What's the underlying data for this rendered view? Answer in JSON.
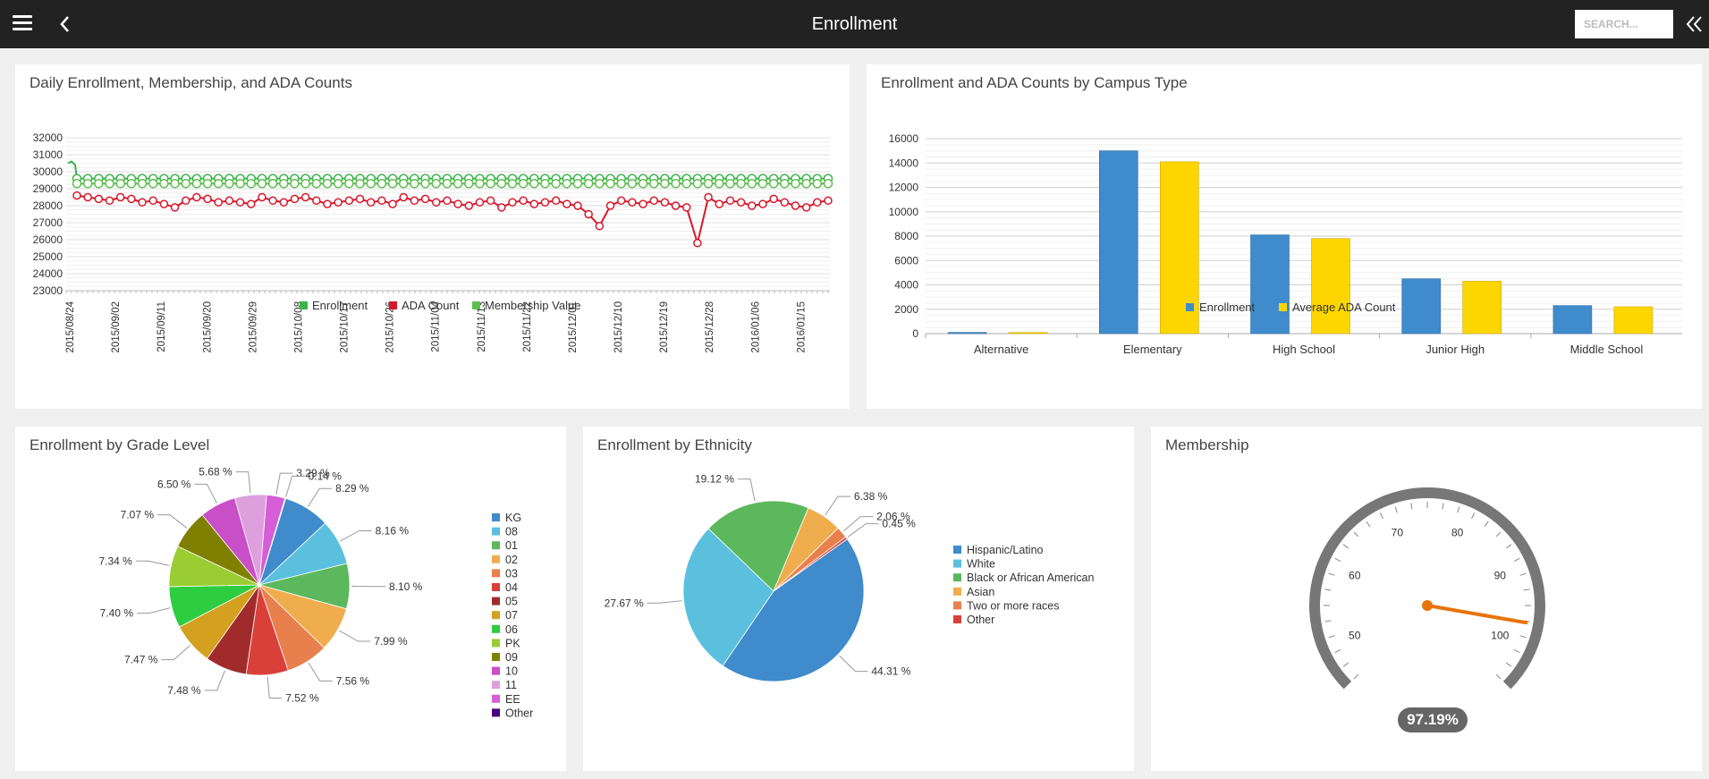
{
  "header": {
    "title": "Enrollment",
    "search_placeholder": "SEARCH...",
    "menu_icon": "hamburger-menu-icon",
    "back_icon": "chevron-left-icon",
    "collapse_icon": "double-chevron-left-icon",
    "bar_color": "#222222"
  },
  "panels": {
    "daily": {
      "title": "Daily Enrollment, Membership, and ADA Counts",
      "chart_data": {
        "type": "line",
        "y_ticks": [
          "32000",
          "31000",
          "30000",
          "29000",
          "28000",
          "27000",
          "26000",
          "25000",
          "24000",
          "23000"
        ],
        "ylim": [
          23000,
          32000
        ],
        "x_ticks": [
          "2015/08/24",
          "2015/09/02",
          "2015/09/11",
          "2015/09/20",
          "2015/09/29",
          "2015/10/08",
          "2015/10/17",
          "2015/10/26",
          "2015/11/04",
          "2015/11/13",
          "2015/11/22",
          "2015/12/01",
          "2015/12/10",
          "2015/12/19",
          "2015/12/28",
          "2016/01/06",
          "2016/01/15"
        ],
        "legend": [
          "Enrollment",
          "ADA Count",
          "Membership Value"
        ],
        "legend_colors": [
          "#3db24b",
          "#d7182a",
          "#5cbf4c"
        ],
        "series_enrollment_approx": 29600,
        "series_membership_approx": 29300,
        "series_ada_values": [
          28600,
          28500,
          28400,
          28300,
          28500,
          28400,
          28200,
          28300,
          28100,
          27900,
          28300,
          28500,
          28400,
          28200,
          28300,
          28200,
          28100,
          28500,
          28300,
          28200,
          28400,
          28500,
          28300,
          28100,
          28200,
          28300,
          28400,
          28200,
          28300,
          28100,
          28500,
          28300,
          28400,
          28200,
          28300,
          28100,
          28000,
          28200,
          28300,
          27900,
          28200,
          28300,
          28100,
          28200,
          28300,
          28100,
          28000,
          27500,
          26800,
          28000,
          28300,
          28200,
          28100,
          28300,
          28200,
          28000,
          27900,
          25800,
          28500,
          28100,
          28300,
          28200,
          28000,
          28100,
          28400,
          28200,
          28000,
          27900,
          28200,
          28300
        ]
      }
    },
    "campus": {
      "title": "Enrollment and ADA Counts by Campus Type",
      "chart_data": {
        "type": "bar",
        "categories": [
          "Alternative",
          "Elementary",
          "High School",
          "Junior High",
          "Middle School"
        ],
        "series": [
          {
            "name": "Enrollment",
            "values": [
              100,
              15000,
              8100,
              4500,
              2300
            ],
            "color": "#3f8bcc"
          },
          {
            "name": "Average ADA Count",
            "values": [
              90,
              14100,
              7800,
              4300,
              2200
            ],
            "color": "#fdd600"
          }
        ],
        "y_ticks": [
          "16000",
          "14000",
          "12000",
          "10000",
          "8000",
          "6000",
          "4000",
          "2000",
          "0"
        ],
        "ylim": [
          0,
          16000
        ]
      }
    },
    "grade": {
      "title": "Enrollment by Grade Level",
      "chart_data": {
        "type": "pie",
        "slices": [
          {
            "label": "KG",
            "value": 8.29,
            "pct": "8.29 %",
            "color": "#3f8bcc"
          },
          {
            "label": "08",
            "value": 8.16,
            "pct": "8.16 %",
            "color": "#5bc0de"
          },
          {
            "label": "01",
            "value": 8.1,
            "pct": "8.10 %",
            "color": "#5cb85c"
          },
          {
            "label": "02",
            "value": 7.99,
            "pct": "7.99 %",
            "color": "#f0ad4e"
          },
          {
            "label": "03",
            "value": 7.56,
            "pct": "7.56 %",
            "color": "#e8804d"
          },
          {
            "label": "04",
            "value": 7.52,
            "pct": "7.52 %",
            "color": "#d9403a"
          },
          {
            "label": "05",
            "value": 7.48,
            "pct": "7.48 %",
            "color": "#a12b2b"
          },
          {
            "label": "07",
            "value": 7.47,
            "pct": "7.47 %",
            "color": "#d4a020"
          },
          {
            "label": "06",
            "value": 7.4,
            "pct": "7.40 %",
            "color": "#2ecc40"
          },
          {
            "label": "PK",
            "value": 7.34,
            "pct": "7.34 %",
            "color": "#9acd32"
          },
          {
            "label": "09",
            "value": 7.07,
            "pct": "7.07 %",
            "color": "#808000"
          },
          {
            "label": "10",
            "value": 6.5,
            "pct": "6.50 %",
            "color": "#c94fc9"
          },
          {
            "label": "11",
            "value": 5.68,
            "pct": "5.68 %",
            "color": "#dda0dd"
          },
          {
            "label": "EE",
            "value": 3.29,
            "pct": "3.29 %",
            "color": "#d65ed6"
          },
          {
            "label": "Other",
            "value": 0.14,
            "pct": "0.14 %",
            "color": "#4b0082"
          }
        ]
      }
    },
    "ethnicity": {
      "title": "Enrollment by Ethnicity",
      "chart_data": {
        "type": "pie",
        "slices": [
          {
            "label": "Hispanic/Latino",
            "value": 44.31,
            "pct": "44.31 %",
            "color": "#3f8bcc"
          },
          {
            "label": "White",
            "value": 27.67,
            "pct": "27.67 %",
            "color": "#5bc0de"
          },
          {
            "label": "Black or African American",
            "value": 19.12,
            "pct": "19.12 %",
            "color": "#5cb85c"
          },
          {
            "label": "Asian",
            "value": 6.38,
            "pct": "6.38 %",
            "color": "#f0ad4e"
          },
          {
            "label": "Two or more races",
            "value": 2.06,
            "pct": "2.06 %",
            "color": "#e8804d"
          },
          {
            "label": "Other",
            "value": 0.45,
            "pct": "0.45 %",
            "color": "#d9403a"
          }
        ]
      }
    },
    "membership": {
      "title": "Membership",
      "gauge": {
        "value": 97.19,
        "value_label": "97.19%",
        "min": 45,
        "max": 105,
        "tick_labels": [
          "50",
          "60",
          "70",
          "80",
          "90",
          "100"
        ],
        "needle_color": "#e8720c",
        "rim_color": "#777777"
      }
    }
  }
}
